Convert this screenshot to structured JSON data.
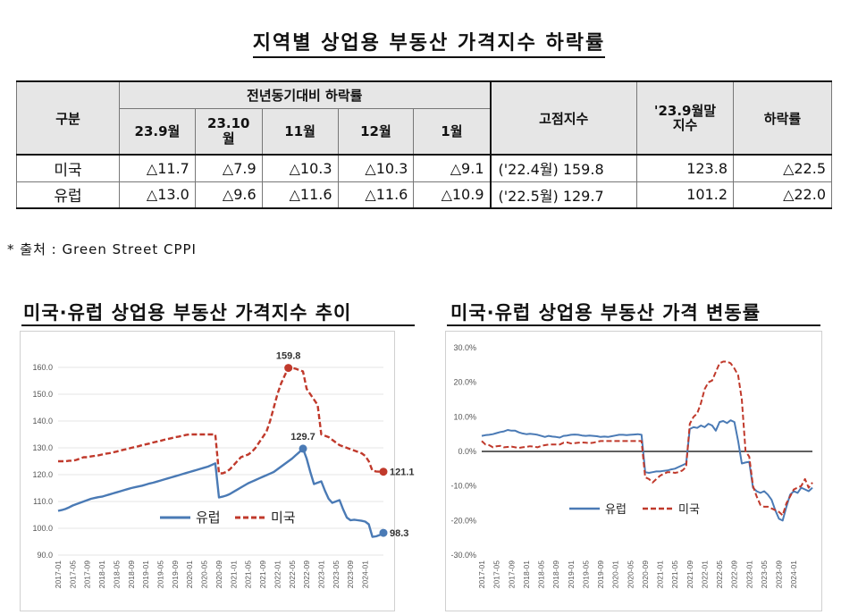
{
  "title": "지역별 상업용 부동산 가격지수 하락률",
  "table": {
    "head_row_label": "구분",
    "group_label": "전년동기대비 하락률",
    "months": [
      "23.9월",
      "23.10\n월",
      "11월",
      "12월",
      "1월"
    ],
    "peak_label": "고점지수",
    "sep_label": "'23.9월말\n지수",
    "decline_label": "하락률",
    "rows": [
      {
        "name": "미국",
        "values": [
          "△11.7",
          "△7.9",
          "△10.3",
          "△10.3",
          "△9.1"
        ],
        "peak": "('22.4월)  159.8",
        "sep": "123.8",
        "decline": "△22.5"
      },
      {
        "name": "유럽",
        "values": [
          "△13.0",
          "△9.6",
          "△11.6",
          "△11.6",
          "△10.9"
        ],
        "peak": "('22.5월)  129.7",
        "sep": "101.2",
        "decline": "△22.0"
      }
    ]
  },
  "source": "*  출처  :  Green  Street  CPPI",
  "chart_data": [
    {
      "type": "line",
      "title": "미국·유럽 상업용 부동산 가격지수 추이",
      "x_labels": [
        "2017-01",
        "2017-05",
        "2017-09",
        "2018-01",
        "2018-05",
        "2018-09",
        "2019-01",
        "2019-05",
        "2019-09",
        "2020-01",
        "2020-05",
        "2020-09",
        "2021-01",
        "2021-05",
        "2021-09",
        "2022-01",
        "2022-05",
        "2022-09",
        "2023-01",
        "2023-05",
        "2023-09",
        "2024-01"
      ],
      "ylim": [
        90,
        160
      ],
      "yticks": [
        "90.0",
        "100.0",
        "110.0",
        "120.0",
        "130.0",
        "140.0",
        "150.0",
        "160.0"
      ],
      "series": [
        {
          "name": "유럽",
          "color": "#4a7ab5",
          "dash": false,
          "values": [
            106.5,
            106.8,
            107.2,
            107.8,
            108.5,
            109.0,
            109.5,
            110.0,
            110.5,
            111.0,
            111.3,
            111.6,
            111.8,
            112.2,
            112.6,
            113.0,
            113.4,
            113.8,
            114.2,
            114.6,
            115.0,
            115.3,
            115.6,
            115.9,
            116.3,
            116.7,
            117.0,
            117.4,
            117.8,
            118.2,
            118.6,
            119.0,
            119.4,
            119.8,
            120.2,
            120.6,
            121.0,
            121.4,
            121.8,
            122.2,
            122.6,
            123.0,
            123.6,
            124.2,
            111.5,
            111.8,
            112.2,
            112.8,
            113.6,
            114.4,
            115.2,
            116.0,
            116.8,
            117.4,
            118.0,
            118.6,
            119.2,
            119.8,
            120.4,
            121.0,
            122.0,
            123.0,
            124.0,
            125.0,
            126.0,
            127.2,
            128.4,
            129.7,
            126.0,
            121.0,
            116.5,
            117.0,
            117.5,
            114.0,
            111.0,
            109.5,
            110.0,
            110.5,
            107.0,
            104.0,
            103.0,
            103.2,
            103.0,
            102.8,
            102.5,
            101.5,
            96.8,
            97.0,
            97.5,
            98.3
          ],
          "end_label": "98.3",
          "peak_label": "129.7",
          "peak_index": 67
        },
        {
          "name": "미국",
          "color": "#c0392b",
          "dash": true,
          "values": [
            125.0,
            125.0,
            125.0,
            125.2,
            125.2,
            125.5,
            126.0,
            126.5,
            126.5,
            126.8,
            127.0,
            127.2,
            127.5,
            127.8,
            128.0,
            128.3,
            128.6,
            129.0,
            129.3,
            129.6,
            130.0,
            130.3,
            130.6,
            131.0,
            131.3,
            131.6,
            132.0,
            132.3,
            132.6,
            133.0,
            133.3,
            133.6,
            134.0,
            134.2,
            134.5,
            134.8,
            135.0,
            135.0,
            135.0,
            135.0,
            135.0,
            135.0,
            135.0,
            135.0,
            120.5,
            120.5,
            121.0,
            122.0,
            123.5,
            125.0,
            126.5,
            127.0,
            127.5,
            128.5,
            130.0,
            132.0,
            134.0,
            136.0,
            140.0,
            145.0,
            150.0,
            154.0,
            157.0,
            159.8,
            159.8,
            159.5,
            159.0,
            158.5,
            152.0,
            150.0,
            148.0,
            146.0,
            135.0,
            134.5,
            134.0,
            133.0,
            132.0,
            131.0,
            130.5,
            130.0,
            129.5,
            129.0,
            128.5,
            128.0,
            127.0,
            125.0,
            121.5,
            121.2,
            121.1,
            121.1
          ],
          "end_label": "121.1",
          "peak_label": "159.8",
          "peak_index": 63
        }
      ],
      "legend": "bottom-left"
    },
    {
      "type": "line",
      "title": "미국·유럽 상업용 부동산 가격 변동률",
      "x_labels": [
        "2017-01",
        "2017-05",
        "2017-09",
        "2018-01",
        "2018-05",
        "2018-09",
        "2019-01",
        "2019-05",
        "2019-09",
        "2020-01",
        "2020-05",
        "2020-09",
        "2021-01",
        "2021-05",
        "2021-09",
        "2022-01",
        "2022-05",
        "2022-09",
        "2023-01",
        "2023-05",
        "2023-09",
        "2024-01"
      ],
      "ylim": [
        -30,
        30
      ],
      "yticks": [
        "-30.0%",
        "-20.0%",
        "-10.0%",
        "0.0%",
        "10.0%",
        "20.0%",
        "30.0%"
      ],
      "series": [
        {
          "name": "유럽",
          "color": "#4a7ab5",
          "dash": false,
          "values": [
            4.5,
            4.7,
            4.8,
            5.0,
            5.3,
            5.6,
            5.8,
            6.2,
            6.0,
            6.0,
            5.5,
            5.2,
            5.0,
            5.1,
            5.0,
            4.8,
            4.5,
            4.2,
            4.5,
            4.3,
            4.2,
            4.0,
            4.5,
            4.6,
            4.8,
            4.9,
            4.8,
            4.6,
            4.5,
            4.6,
            4.5,
            4.4,
            4.2,
            4.3,
            4.2,
            4.4,
            4.6,
            4.8,
            4.8,
            4.7,
            4.8,
            4.9,
            5.0,
            4.8,
            -6.0,
            -6.2,
            -6.0,
            -5.8,
            -5.8,
            -5.6,
            -5.5,
            -5.2,
            -5.0,
            -4.5,
            -4.0,
            -3.5,
            6.5,
            7.0,
            6.8,
            7.5,
            7.0,
            8.0,
            7.5,
            6.0,
            8.5,
            8.8,
            8.2,
            9.0,
            8.5,
            3.0,
            -3.5,
            -3.2,
            -3.0,
            -10.5,
            -11.5,
            -12.0,
            -11.5,
            -12.5,
            -14.0,
            -17.0,
            -19.5,
            -20.0,
            -16.0,
            -12.5,
            -11.5,
            -12.0,
            -10.5,
            -11.0,
            -11.5,
            -10.5
          ],
          "legend_label": "유럽"
        },
        {
          "name": "미국",
          "color": "#c0392b",
          "dash": true,
          "values": [
            3.0,
            2.0,
            1.8,
            1.2,
            1.5,
            1.6,
            1.2,
            1.3,
            1.4,
            1.2,
            1.0,
            1.2,
            1.3,
            1.5,
            1.4,
            1.2,
            1.6,
            1.8,
            2.0,
            2.0,
            2.0,
            2.0,
            2.5,
            2.6,
            2.3,
            2.4,
            2.5,
            2.6,
            2.5,
            2.4,
            2.5,
            2.8,
            3.0,
            3.0,
            3.0,
            3.0,
            3.0,
            3.0,
            3.0,
            3.0,
            3.0,
            3.0,
            3.0,
            3.0,
            -7.5,
            -8.0,
            -9.0,
            -8.0,
            -7.0,
            -6.5,
            -6.0,
            -6.0,
            -6.2,
            -6.0,
            -5.5,
            -4.5,
            8.0,
            10.0,
            11.0,
            14.0,
            18.0,
            20.0,
            20.5,
            23.0,
            25.5,
            26.0,
            26.0,
            25.5,
            24.0,
            22.0,
            15.0,
            0.0,
            -1.5,
            -10.0,
            -13.0,
            -15.5,
            -16.0,
            -16.0,
            -16.5,
            -17.0,
            -17.5,
            -18.5,
            -15.0,
            -13.0,
            -11.0,
            -10.5,
            -10.0,
            -8.0,
            -10.5,
            -9.0
          ],
          "legend_label": "미국"
        }
      ],
      "legend": "bottom-left"
    }
  ]
}
